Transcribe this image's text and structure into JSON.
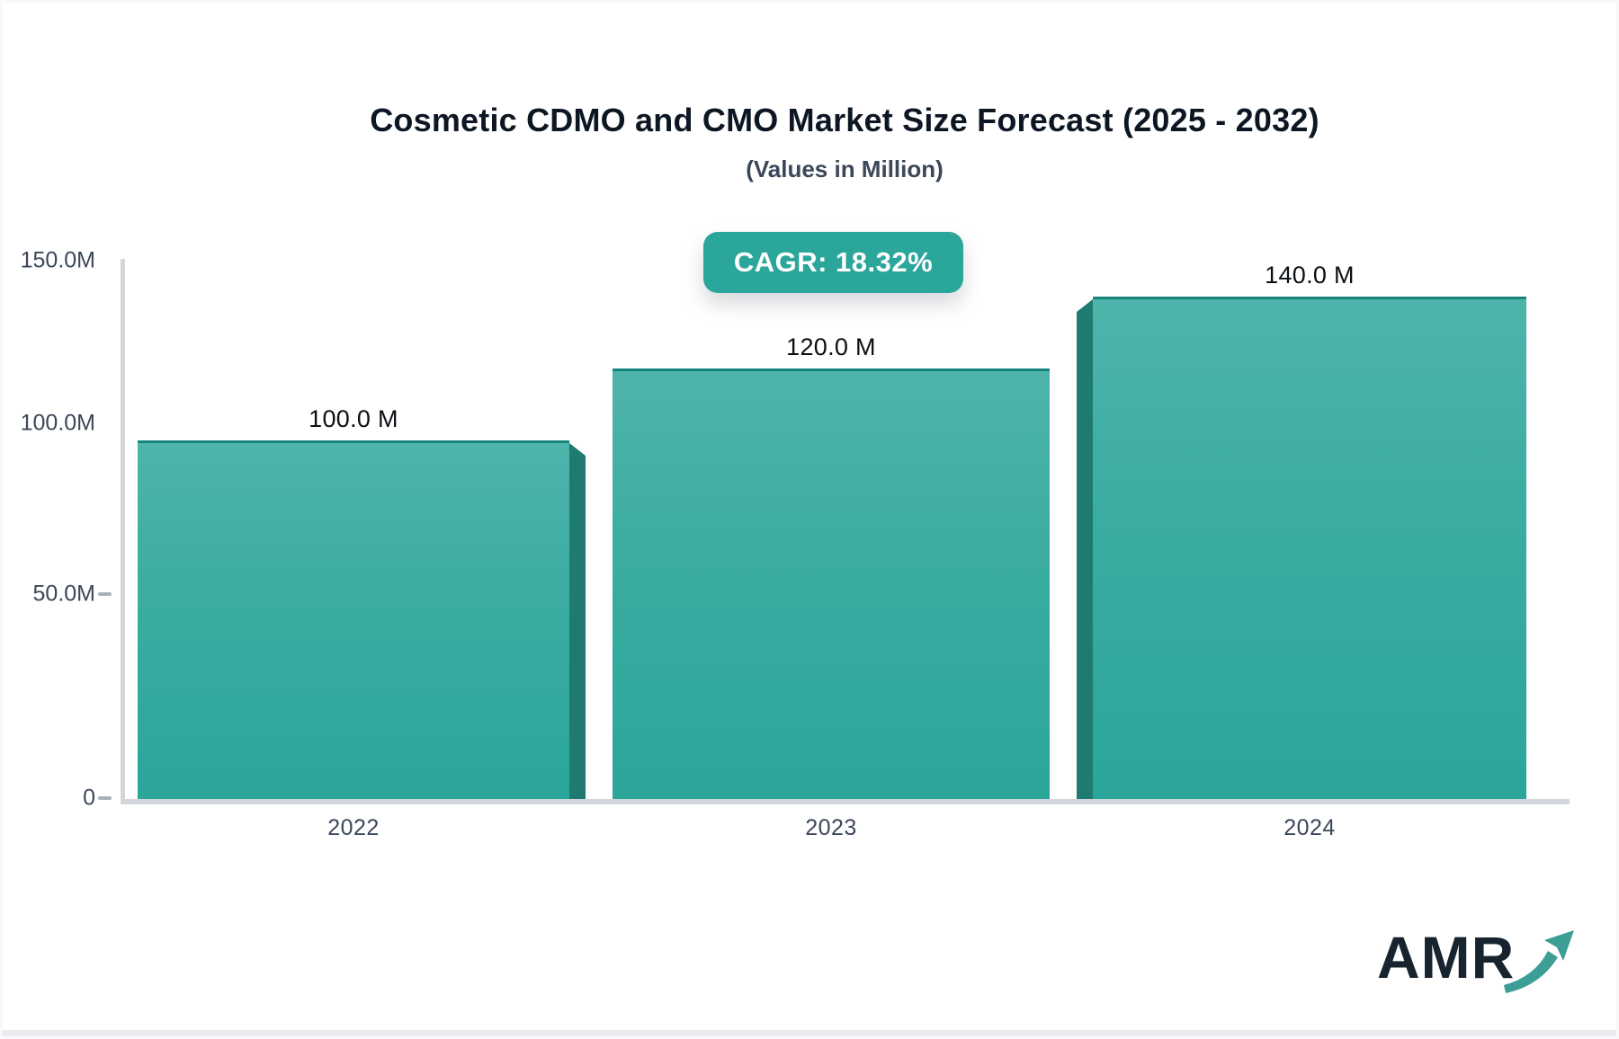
{
  "header": {
    "title": "Cosmetic CDMO and CMO Market Size Forecast (2025 - 2032)",
    "subtitle": "(Values in Million)",
    "cagr_label": "CAGR: 18.32%"
  },
  "chart_data": {
    "type": "bar",
    "title": "Cosmetic CDMO and CMO Market Size Forecast (2025 - 2032)",
    "subtitle": "(Values in Million)",
    "unit": "Million",
    "cagr": "18.32%",
    "categories": [
      "2022",
      "2023",
      "2024"
    ],
    "values": [
      100.0,
      120.0,
      140.0
    ],
    "value_labels": [
      "100.0 M",
      "120.0 M",
      "140.0 M"
    ],
    "xlabel": "",
    "ylabel": "",
    "ylim": [
      0,
      150
    ],
    "y_ticks": [
      {
        "value": 150,
        "label": "150.0M"
      },
      {
        "value": 100,
        "label": "100.0M"
      },
      {
        "value": 50,
        "label": "50.0M"
      },
      {
        "value": 0,
        "label": "0"
      }
    ],
    "grid": false,
    "legend_position": "none",
    "colors": {
      "bar_gradient_top": "#4eb4ab",
      "bar_gradient_bottom": "#2ba69a",
      "bar_top_edge": "#17857a",
      "bar_3d_side": "#1f7b6f",
      "badge_background": "#2aa69b",
      "badge_text": "#ffffff",
      "axis_line": "#d3d7dc",
      "tick_text": "#3c4759",
      "title_text": "#0d1724"
    }
  },
  "footer": {
    "logo_text": "AMR"
  }
}
